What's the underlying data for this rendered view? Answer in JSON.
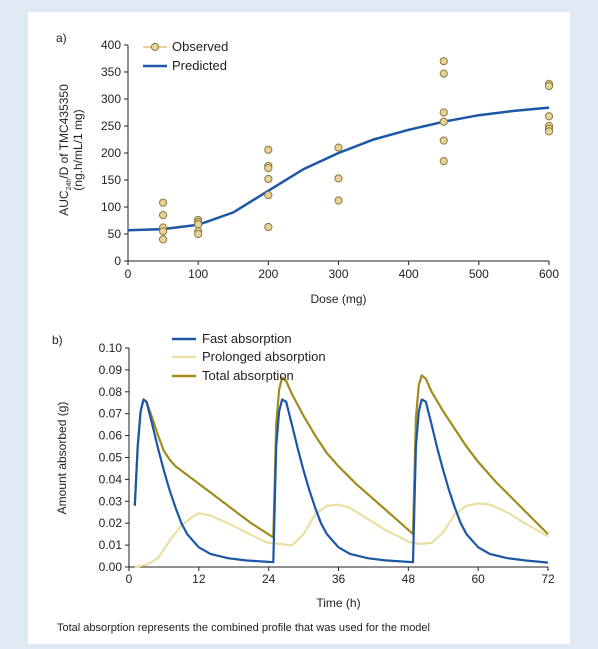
{
  "caption": "Total absorption represents the combined profile that was used for the model",
  "colors": {
    "background_frame": "#dfe9f3",
    "observed_fill": "#e7d39a",
    "observed_stroke": "#8a7a40",
    "predicted": "#1b57a6",
    "fast": "#1b57a6",
    "prolonged": "#ebdfa3",
    "total": "#a38a1e"
  },
  "chart_data": [
    {
      "type": "scatter",
      "panel_label": "a)",
      "title": "",
      "xlabel": "Dose (mg)",
      "ylabel_line1_prefix": "AUC",
      "ylabel_line1_sub": "24h",
      "ylabel_line1_suffix": "/D of TMC435350",
      "ylabel_line2": "(ng.h/mL/1 mg)",
      "xlim": [
        0,
        600
      ],
      "ylim": [
        0,
        400
      ],
      "xticks": [
        0,
        100,
        200,
        300,
        400,
        500,
        600
      ],
      "yticks": [
        0,
        50,
        100,
        150,
        200,
        250,
        300,
        350,
        400
      ],
      "legend": {
        "placement": "top-left",
        "items": [
          "Observed",
          "Predicted"
        ]
      },
      "series": [
        {
          "name": "Observed",
          "kind": "points",
          "points": [
            [
              50,
              108
            ],
            [
              50,
              85
            ],
            [
              50,
              62
            ],
            [
              50,
              55
            ],
            [
              50,
              40
            ],
            [
              100,
              76
            ],
            [
              100,
              72
            ],
            [
              100,
              68
            ],
            [
              100,
              55
            ],
            [
              100,
              50
            ],
            [
              200,
              206
            ],
            [
              200,
              176
            ],
            [
              200,
              172
            ],
            [
              200,
              152
            ],
            [
              200,
              122
            ],
            [
              200,
              63
            ],
            [
              300,
              210
            ],
            [
              300,
              153
            ],
            [
              300,
              112
            ],
            [
              450,
              370
            ],
            [
              450,
              347
            ],
            [
              450,
              275
            ],
            [
              450,
              258
            ],
            [
              450,
              223
            ],
            [
              450,
              185
            ],
            [
              600,
              328
            ],
            [
              600,
              324
            ],
            [
              600,
              268
            ],
            [
              600,
              250
            ],
            [
              600,
              245
            ],
            [
              600,
              240
            ]
          ]
        },
        {
          "name": "Predicted",
          "kind": "line",
          "points": [
            [
              0,
              57
            ],
            [
              50,
              59
            ],
            [
              100,
              67
            ],
            [
              150,
              90
            ],
            [
              200,
              130
            ],
            [
              250,
              170
            ],
            [
              300,
              200
            ],
            [
              350,
              225
            ],
            [
              400,
              243
            ],
            [
              450,
              258
            ],
            [
              500,
              270
            ],
            [
              550,
              278
            ],
            [
              600,
              284
            ]
          ]
        }
      ]
    },
    {
      "type": "line",
      "panel_label": "b)",
      "title": "",
      "xlabel": "Time (h)",
      "ylabel": "Amount absorbed (g)",
      "xlim": [
        0,
        72
      ],
      "ylim": [
        0,
        0.1
      ],
      "xticks": [
        0,
        12,
        24,
        36,
        48,
        60,
        72
      ],
      "yticks": [
        0.0,
        0.01,
        0.02,
        0.03,
        0.04,
        0.05,
        0.06,
        0.07,
        0.08,
        0.09,
        0.1
      ],
      "ytick_labels": [
        "0.00",
        "0.01",
        "0.02",
        "0.03",
        "0.04",
        "0.05",
        "0.06",
        "0.07",
        "0.08",
        "0.09",
        "0.10"
      ],
      "legend": {
        "placement": "top-center",
        "items": [
          "Fast absorption",
          "Prolonged absorption",
          "Total absorption"
        ]
      },
      "series": [
        {
          "name": "Fast absorption",
          "points": [
            [
              1,
              0.028
            ],
            [
              1.5,
              0.055
            ],
            [
              2,
              0.071
            ],
            [
              2.5,
              0.0765
            ],
            [
              3,
              0.0755
            ],
            [
              4,
              0.065
            ],
            [
              5,
              0.054
            ],
            [
              6,
              0.044
            ],
            [
              7,
              0.035
            ],
            [
              8,
              0.027
            ],
            [
              9,
              0.02
            ],
            [
              10,
              0.015
            ],
            [
              12,
              0.009
            ],
            [
              14,
              0.006
            ],
            [
              17,
              0.004
            ],
            [
              20,
              0.003
            ],
            [
              23,
              0.0025
            ],
            [
              24.8,
              0.0022
            ],
            [
              25.3,
              0.055
            ],
            [
              25.8,
              0.071
            ],
            [
              26.3,
              0.0765
            ],
            [
              27,
              0.0755
            ],
            [
              28,
              0.065
            ],
            [
              29,
              0.054
            ],
            [
              30,
              0.044
            ],
            [
              31,
              0.035
            ],
            [
              32,
              0.027
            ],
            [
              33,
              0.02
            ],
            [
              34,
              0.015
            ],
            [
              36,
              0.009
            ],
            [
              38,
              0.006
            ],
            [
              41,
              0.004
            ],
            [
              44,
              0.003
            ],
            [
              47,
              0.0025
            ],
            [
              48.8,
              0.0022
            ],
            [
              49.3,
              0.055
            ],
            [
              49.8,
              0.071
            ],
            [
              50.3,
              0.0765
            ],
            [
              51,
              0.0755
            ],
            [
              52,
              0.065
            ],
            [
              53,
              0.054
            ],
            [
              54,
              0.044
            ],
            [
              55,
              0.035
            ],
            [
              56,
              0.027
            ],
            [
              57,
              0.02
            ],
            [
              58,
              0.015
            ],
            [
              60,
              0.009
            ],
            [
              62,
              0.006
            ],
            [
              65,
              0.004
            ],
            [
              68,
              0.003
            ],
            [
              72,
              0.002
            ]
          ]
        },
        {
          "name": "Prolonged absorption",
          "points": [
            [
              1,
              0.0
            ],
            [
              3,
              0.001
            ],
            [
              5,
              0.004
            ],
            [
              7,
              0.012
            ],
            [
              9,
              0.019
            ],
            [
              11,
              0.023
            ],
            [
              12,
              0.0245
            ],
            [
              14,
              0.0235
            ],
            [
              17,
              0.02
            ],
            [
              20,
              0.016
            ],
            [
              23,
              0.012
            ],
            [
              24,
              0.011
            ],
            [
              26,
              0.0105
            ],
            [
              28,
              0.0098
            ],
            [
              30,
              0.015
            ],
            [
              32,
              0.024
            ],
            [
              34,
              0.028
            ],
            [
              36,
              0.0285
            ],
            [
              38,
              0.027
            ],
            [
              41,
              0.022
            ],
            [
              44,
              0.017
            ],
            [
              47,
              0.013
            ],
            [
              48,
              0.0115
            ],
            [
              50,
              0.0105
            ],
            [
              52,
              0.011
            ],
            [
              54,
              0.016
            ],
            [
              56,
              0.024
            ],
            [
              58,
              0.028
            ],
            [
              60,
              0.029
            ],
            [
              62,
              0.0285
            ],
            [
              65,
              0.025
            ],
            [
              68,
              0.02
            ],
            [
              72,
              0.014
            ]
          ]
        },
        {
          "name": "Total absorption",
          "points": [
            [
              1,
              0.028
            ],
            [
              1.5,
              0.055
            ],
            [
              2,
              0.071
            ],
            [
              2.5,
              0.0765
            ],
            [
              3,
              0.0755
            ],
            [
              4,
              0.068
            ],
            [
              5,
              0.06
            ],
            [
              6,
              0.053
            ],
            [
              7,
              0.049
            ],
            [
              8,
              0.046
            ],
            [
              10,
              0.042
            ],
            [
              12,
              0.038
            ],
            [
              15,
              0.032
            ],
            [
              18,
              0.026
            ],
            [
              21,
              0.02
            ],
            [
              24.8,
              0.0135
            ],
            [
              25.3,
              0.065
            ],
            [
              25.8,
              0.081
            ],
            [
              26.3,
              0.0865
            ],
            [
              27,
              0.085
            ],
            [
              28,
              0.079
            ],
            [
              30,
              0.069
            ],
            [
              32,
              0.06
            ],
            [
              34,
              0.052
            ],
            [
              36,
              0.046
            ],
            [
              39,
              0.038
            ],
            [
              42,
              0.031
            ],
            [
              45,
              0.024
            ],
            [
              48.8,
              0.015
            ],
            [
              49.3,
              0.068
            ],
            [
              49.8,
              0.083
            ],
            [
              50.3,
              0.0875
            ],
            [
              51,
              0.086
            ],
            [
              52,
              0.08
            ],
            [
              54,
              0.071
            ],
            [
              56,
              0.063
            ],
            [
              58,
              0.055
            ],
            [
              60,
              0.048
            ],
            [
              63,
              0.039
            ],
            [
              66,
              0.031
            ],
            [
              69,
              0.023
            ],
            [
              72,
              0.015
            ]
          ]
        }
      ]
    }
  ]
}
